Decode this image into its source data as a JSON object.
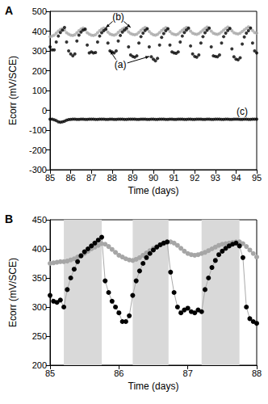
{
  "chart_data": [
    {
      "type": "scatter",
      "panel_label": "A",
      "x_label": "Time (days)",
      "y_label": "Ecorr (mV/SCE)",
      "xlim": [
        85,
        95
      ],
      "xticks": [
        85,
        86,
        87,
        88,
        89,
        90,
        91,
        92,
        93,
        94,
        95
      ],
      "ylim": [
        -300,
        500
      ],
      "yticks": [
        -300,
        -200,
        -100,
        0,
        100,
        200,
        300,
        400,
        500
      ],
      "grid": false,
      "x": [
        85,
        85.1,
        85.2,
        85.3,
        85.4,
        85.5,
        85.6,
        85.7,
        85.8,
        85.9,
        86,
        86.1,
        86.2,
        86.3,
        86.4,
        86.5,
        86.6,
        86.7,
        86.8,
        86.9,
        87,
        87.1,
        87.2,
        87.3,
        87.4,
        87.5,
        87.6,
        87.7,
        87.8,
        87.9,
        88,
        88.1,
        88.2,
        88.3,
        88.4,
        88.5,
        88.6,
        88.7,
        88.8,
        88.9,
        89,
        89.1,
        89.2,
        89.3,
        89.4,
        89.5,
        89.6,
        89.7,
        89.8,
        89.9,
        90,
        90.1,
        90.2,
        90.3,
        90.4,
        90.5,
        90.6,
        90.7,
        90.8,
        90.9,
        91,
        91.1,
        91.2,
        91.3,
        91.4,
        91.5,
        91.6,
        91.7,
        91.8,
        91.9,
        92,
        92.1,
        92.2,
        92.3,
        92.4,
        92.5,
        92.6,
        92.7,
        92.8,
        92.9,
        93,
        93.1,
        93.2,
        93.3,
        93.4,
        93.5,
        93.6,
        93.7,
        93.8,
        93.9,
        94,
        94.1,
        94.2,
        94.3,
        94.4,
        94.5,
        94.6,
        94.7,
        94.8,
        94.9,
        95
      ],
      "series": [
        {
          "color": "#000000",
          "marker": "circle",
          "values": [
            320,
            305,
            305,
            345,
            375,
            393,
            405,
            418,
            345,
            300,
            285,
            275,
            285,
            350,
            380,
            395,
            405,
            410,
            330,
            290,
            295,
            290,
            292,
            345,
            375,
            392,
            402,
            410,
            340,
            300,
            295,
            290,
            300,
            350,
            378,
            395,
            405,
            415,
            320,
            280,
            272,
            268,
            275,
            340,
            372,
            390,
            403,
            412,
            320,
            270,
            258,
            250,
            262,
            330,
            368,
            388,
            402,
            412,
            330,
            295,
            290,
            288,
            295,
            345,
            375,
            393,
            405,
            415,
            325,
            285,
            272,
            268,
            280,
            340,
            372,
            392,
            404,
            415,
            320,
            275,
            272,
            270,
            280,
            340,
            372,
            390,
            403,
            413,
            310,
            270,
            258,
            255,
            265,
            335,
            370,
            390,
            402,
            415,
            340,
            300,
            290
          ]
        },
        {
          "color": "#a6a6a6",
          "marker": "circle",
          "values": [
            372,
            375,
            380,
            390,
            400,
            408,
            412,
            405,
            392,
            385,
            380,
            378,
            382,
            392,
            402,
            410,
            415,
            405,
            392,
            385,
            380,
            378,
            382,
            392,
            402,
            410,
            415,
            408,
            395,
            386,
            382,
            380,
            384,
            394,
            403,
            410,
            416,
            408,
            396,
            388,
            384,
            382,
            385,
            394,
            404,
            412,
            418,
            410,
            398,
            388,
            382,
            380,
            384,
            393,
            403,
            411,
            417,
            410,
            398,
            388,
            384,
            382,
            386,
            395,
            404,
            412,
            418,
            412,
            400,
            390,
            386,
            384,
            388,
            396,
            405,
            413,
            420,
            412,
            400,
            390,
            386,
            384,
            388,
            396,
            405,
            413,
            420,
            414,
            402,
            392,
            388,
            386,
            390,
            398,
            406,
            414,
            421,
            415,
            403,
            393,
            390
          ]
        },
        {
          "color": "#000000",
          "marker": "circle",
          "values": [
            -45,
            -45,
            -48,
            -52,
            -58,
            -60,
            -58,
            -55,
            -50,
            -47,
            -46,
            -45,
            -45,
            -46,
            -46,
            -45,
            -45,
            -46,
            -46,
            -45,
            -45,
            -45,
            -46,
            -46,
            -45,
            -45,
            -45,
            -46,
            -46,
            -45,
            -45,
            -46,
            -46,
            -45,
            -45,
            -45,
            -46,
            -46,
            -45,
            -45,
            -45,
            -45,
            -46,
            -46,
            -45,
            -45,
            -45,
            -46,
            -46,
            -45,
            -45,
            -46,
            -46,
            -45,
            -45,
            -45,
            -46,
            -46,
            -45,
            -45,
            -46,
            -46,
            -45,
            -45,
            -45,
            -46,
            -46,
            -45,
            -45,
            -46,
            -46,
            -45,
            -45,
            -45,
            -46,
            -46,
            -45,
            -45,
            -46,
            -46,
            -45,
            -45,
            -45,
            -46,
            -46,
            -45,
            -45,
            -46,
            -46,
            -45,
            -45,
            -45,
            -46,
            -46,
            -45,
            -45,
            -46,
            -46,
            -45,
            -45,
            -45
          ]
        }
      ],
      "annotations": [
        {
          "text": "(b)",
          "x": 88.3,
          "y": 470,
          "points_to": [
            [
              87.7,
              418
            ],
            [
              88.9,
              418
            ]
          ]
        },
        {
          "text": "(a)",
          "x": 88.4,
          "y": 230,
          "points_to": [
            [
              87.9,
              300
            ],
            [
              89.8,
              272
            ]
          ]
        },
        {
          "text": "(c)",
          "x": 94.3,
          "y": -5,
          "points_to": []
        }
      ]
    },
    {
      "type": "line",
      "panel_label": "B",
      "x_label": "Time (days)",
      "y_label": "Ecorr (mV/SCE)",
      "xlim": [
        85,
        88
      ],
      "xticks": [
        85,
        86,
        87,
        88
      ],
      "ylim": [
        200,
        450
      ],
      "yticks": [
        200,
        250,
        300,
        350,
        400,
        450
      ],
      "grid": false,
      "shaded_ranges": [
        [
          85.2,
          85.75
        ],
        [
          86.2,
          86.72
        ],
        [
          87.2,
          87.75
        ]
      ],
      "x": [
        85,
        85.05,
        85.1,
        85.15,
        85.2,
        85.25,
        85.3,
        85.35,
        85.4,
        85.45,
        85.5,
        85.55,
        85.6,
        85.65,
        85.7,
        85.75,
        85.8,
        85.85,
        85.9,
        85.95,
        86,
        86.05,
        86.1,
        86.15,
        86.2,
        86.25,
        86.3,
        86.35,
        86.4,
        86.45,
        86.5,
        86.55,
        86.6,
        86.65,
        86.7,
        86.75,
        86.8,
        86.85,
        86.9,
        86.95,
        87,
        87.05,
        87.1,
        87.15,
        87.2,
        87.25,
        87.3,
        87.35,
        87.4,
        87.45,
        87.5,
        87.55,
        87.6,
        87.65,
        87.7,
        87.75,
        87.8,
        87.85,
        87.9,
        87.95,
        88
      ],
      "series": [
        {
          "color": "#000000",
          "marker": "circle",
          "line_style": "solid",
          "values": [
            320,
            310,
            308,
            312,
            300,
            330,
            350,
            365,
            378,
            388,
            395,
            400,
            405,
            410,
            415,
            420,
            345,
            325,
            310,
            300,
            290,
            275,
            275,
            285,
            320,
            345,
            362,
            375,
            385,
            392,
            398,
            403,
            407,
            410,
            412,
            360,
            325,
            300,
            290,
            295,
            298,
            292,
            290,
            295,
            292,
            330,
            350,
            368,
            380,
            390,
            396,
            401,
            405,
            408,
            410,
            405,
            385,
            300,
            280,
            275,
            272
          ]
        },
        {
          "color": "#a6a6a6",
          "marker": "circle",
          "line_style": "solid",
          "values": [
            375,
            376,
            377,
            378,
            378,
            379,
            381,
            383,
            386,
            389,
            392,
            396,
            400,
            403,
            406,
            409,
            408,
            404,
            399,
            394,
            389,
            386,
            383,
            381,
            380,
            382,
            385,
            389,
            393,
            397,
            401,
            404,
            407,
            409,
            411,
            412,
            410,
            406,
            401,
            396,
            392,
            390,
            389,
            390,
            392,
            394,
            397,
            400,
            403,
            406,
            408,
            409,
            410,
            411,
            412,
            412,
            409,
            404,
            398,
            392,
            386
          ]
        }
      ]
    }
  ]
}
